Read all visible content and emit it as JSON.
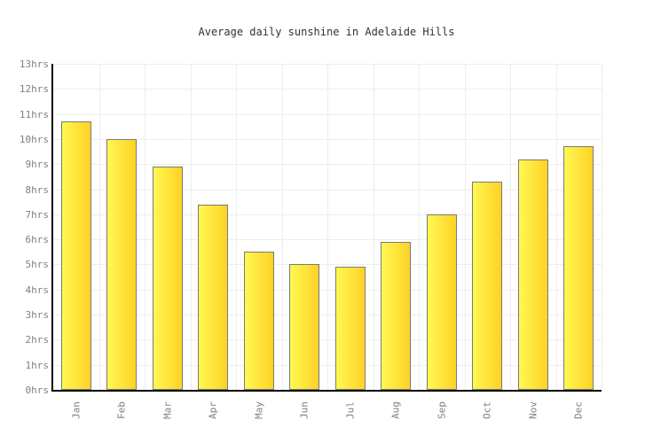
{
  "chart_data": {
    "type": "bar",
    "title": "Average daily sunshine in Adelaide Hills",
    "categories": [
      "Jan",
      "Feb",
      "Mar",
      "Apr",
      "May",
      "Jun",
      "Jul",
      "Aug",
      "Sep",
      "Oct",
      "Nov",
      "Dec"
    ],
    "values": [
      10.7,
      10.0,
      8.9,
      7.4,
      5.5,
      5.0,
      4.9,
      5.9,
      7.0,
      8.3,
      9.2,
      9.7
    ],
    "unit_suffix": "hrs",
    "yticks": [
      "0hrs",
      "1hrs",
      "2hrs",
      "3hrs",
      "4hrs",
      "5hrs",
      "6hrs",
      "7hrs",
      "8hrs",
      "9hrs",
      "10hrs",
      "11hrs",
      "12hrs",
      "13hrs"
    ],
    "ylim": [
      0,
      13
    ],
    "xlabel": "",
    "ylabel": "",
    "grid": true,
    "legend": false,
    "x_tick_rotation_degrees": -90,
    "colors": {
      "background": "#ffffff",
      "title": "#333333",
      "tick_labels": "#808080",
      "gridlines": "#ededed",
      "axes": "#000000",
      "bar_gradient_left": "#fff852",
      "bar_gradient_right": "#ffd226",
      "bar_border": "#7a7a7a"
    }
  }
}
